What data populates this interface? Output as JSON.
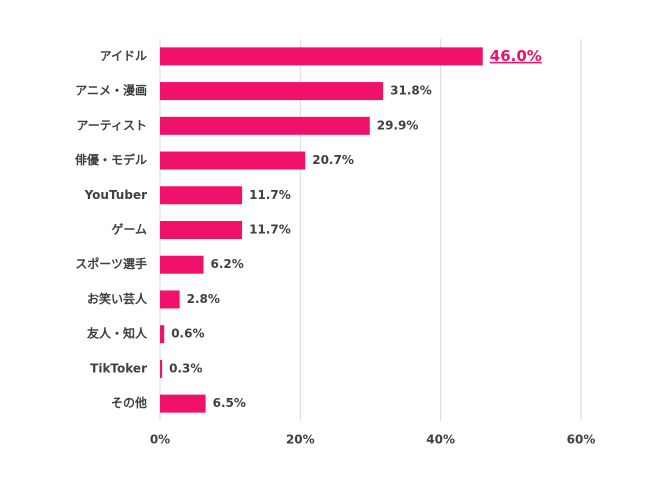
{
  "chart_data": {
    "type": "bar",
    "orientation": "horizontal",
    "categories": [
      "アイドル",
      "アニメ・漫画",
      "アーティスト",
      "俳優・モデル",
      "YouTuber",
      "ゲーム",
      "スポーツ選手",
      "お笑い芸人",
      "友人・知人",
      "TikToker",
      "その他"
    ],
    "values": [
      46.0,
      31.8,
      29.9,
      20.7,
      11.7,
      11.7,
      6.2,
      2.8,
      0.6,
      0.3,
      6.5
    ],
    "value_labels": [
      "46.0%",
      "31.8%",
      "29.9%",
      "20.7%",
      "11.7%",
      "11.7%",
      "6.2%",
      "2.8%",
      "0.6%",
      "0.3%",
      "6.5%"
    ],
    "color": "#f0116b",
    "xlim": [
      0,
      60
    ],
    "xticks": [
      {
        "value": 0,
        "label": "0%"
      },
      {
        "value": 20,
        "label": "20%"
      },
      {
        "value": 40,
        "label": "40%"
      },
      {
        "value": 60,
        "label": "60%"
      }
    ],
    "grid": true
  }
}
